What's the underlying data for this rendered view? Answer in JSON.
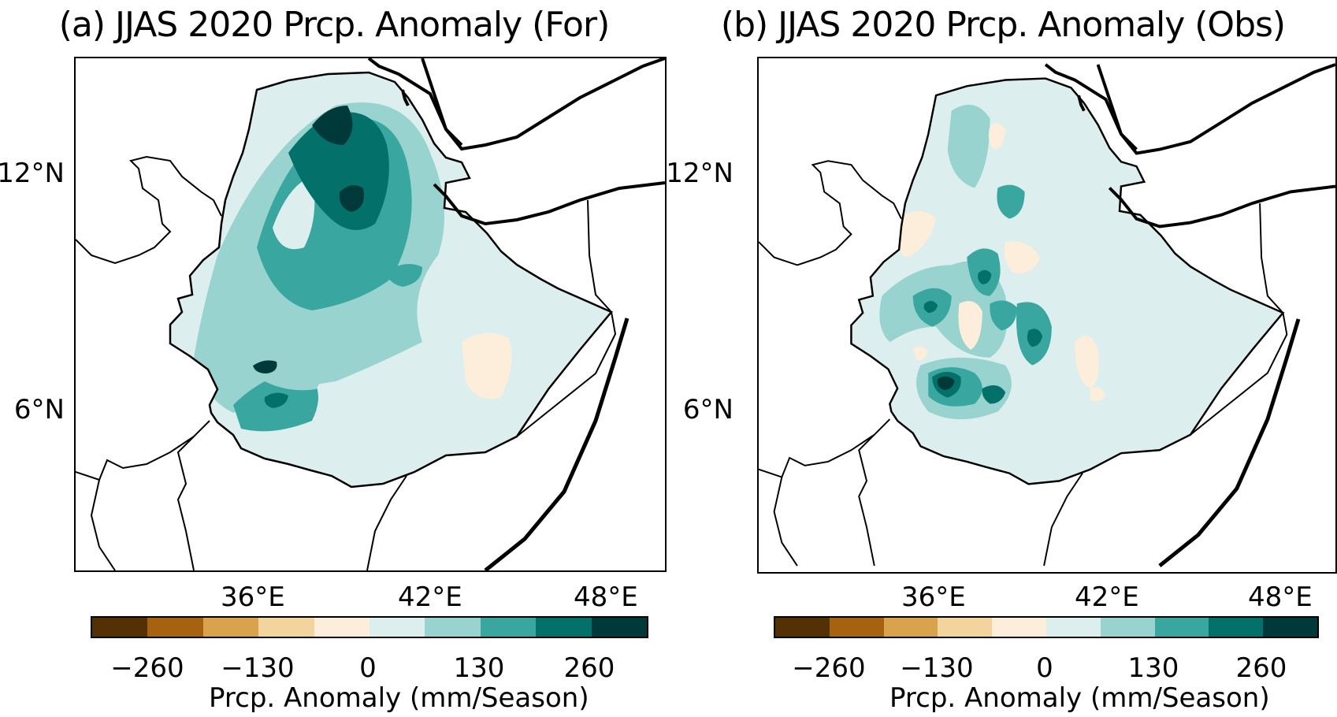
{
  "panels": [
    {
      "title": "(a) JJAS 2020 Prcp. Anomaly (For)",
      "lat_ticks": [
        "12°N",
        "6°N"
      ],
      "lon_ticks": [
        "36°E",
        "42°E",
        "48°E"
      ],
      "colorbar": {
        "label": "Prcp. Anomaly (mm/Season)",
        "ticks": [
          "−260",
          "−130",
          "0",
          "130",
          "260"
        ]
      }
    },
    {
      "title": "(b) JJAS 2020 Prcp. Anomaly (Obs)",
      "lat_ticks": [
        "12°N",
        "6°N"
      ],
      "lon_ticks": [
        "36°E",
        "42°E",
        "48°E"
      ],
      "colorbar": {
        "label": "Prcp. Anomaly (mm/Season)",
        "ticks": [
          "−260",
          "−130",
          "0",
          "130",
          "260"
        ]
      }
    }
  ],
  "colormap": [
    "#543005",
    "#a6620f",
    "#d9a24d",
    "#f2d49c",
    "#fdeedb",
    "#dcefee",
    "#98d3d0",
    "#3aa6a0",
    "#03706a",
    "#00393a"
  ],
  "colors": {
    "border": "#000000",
    "land": "#ffffff"
  }
}
